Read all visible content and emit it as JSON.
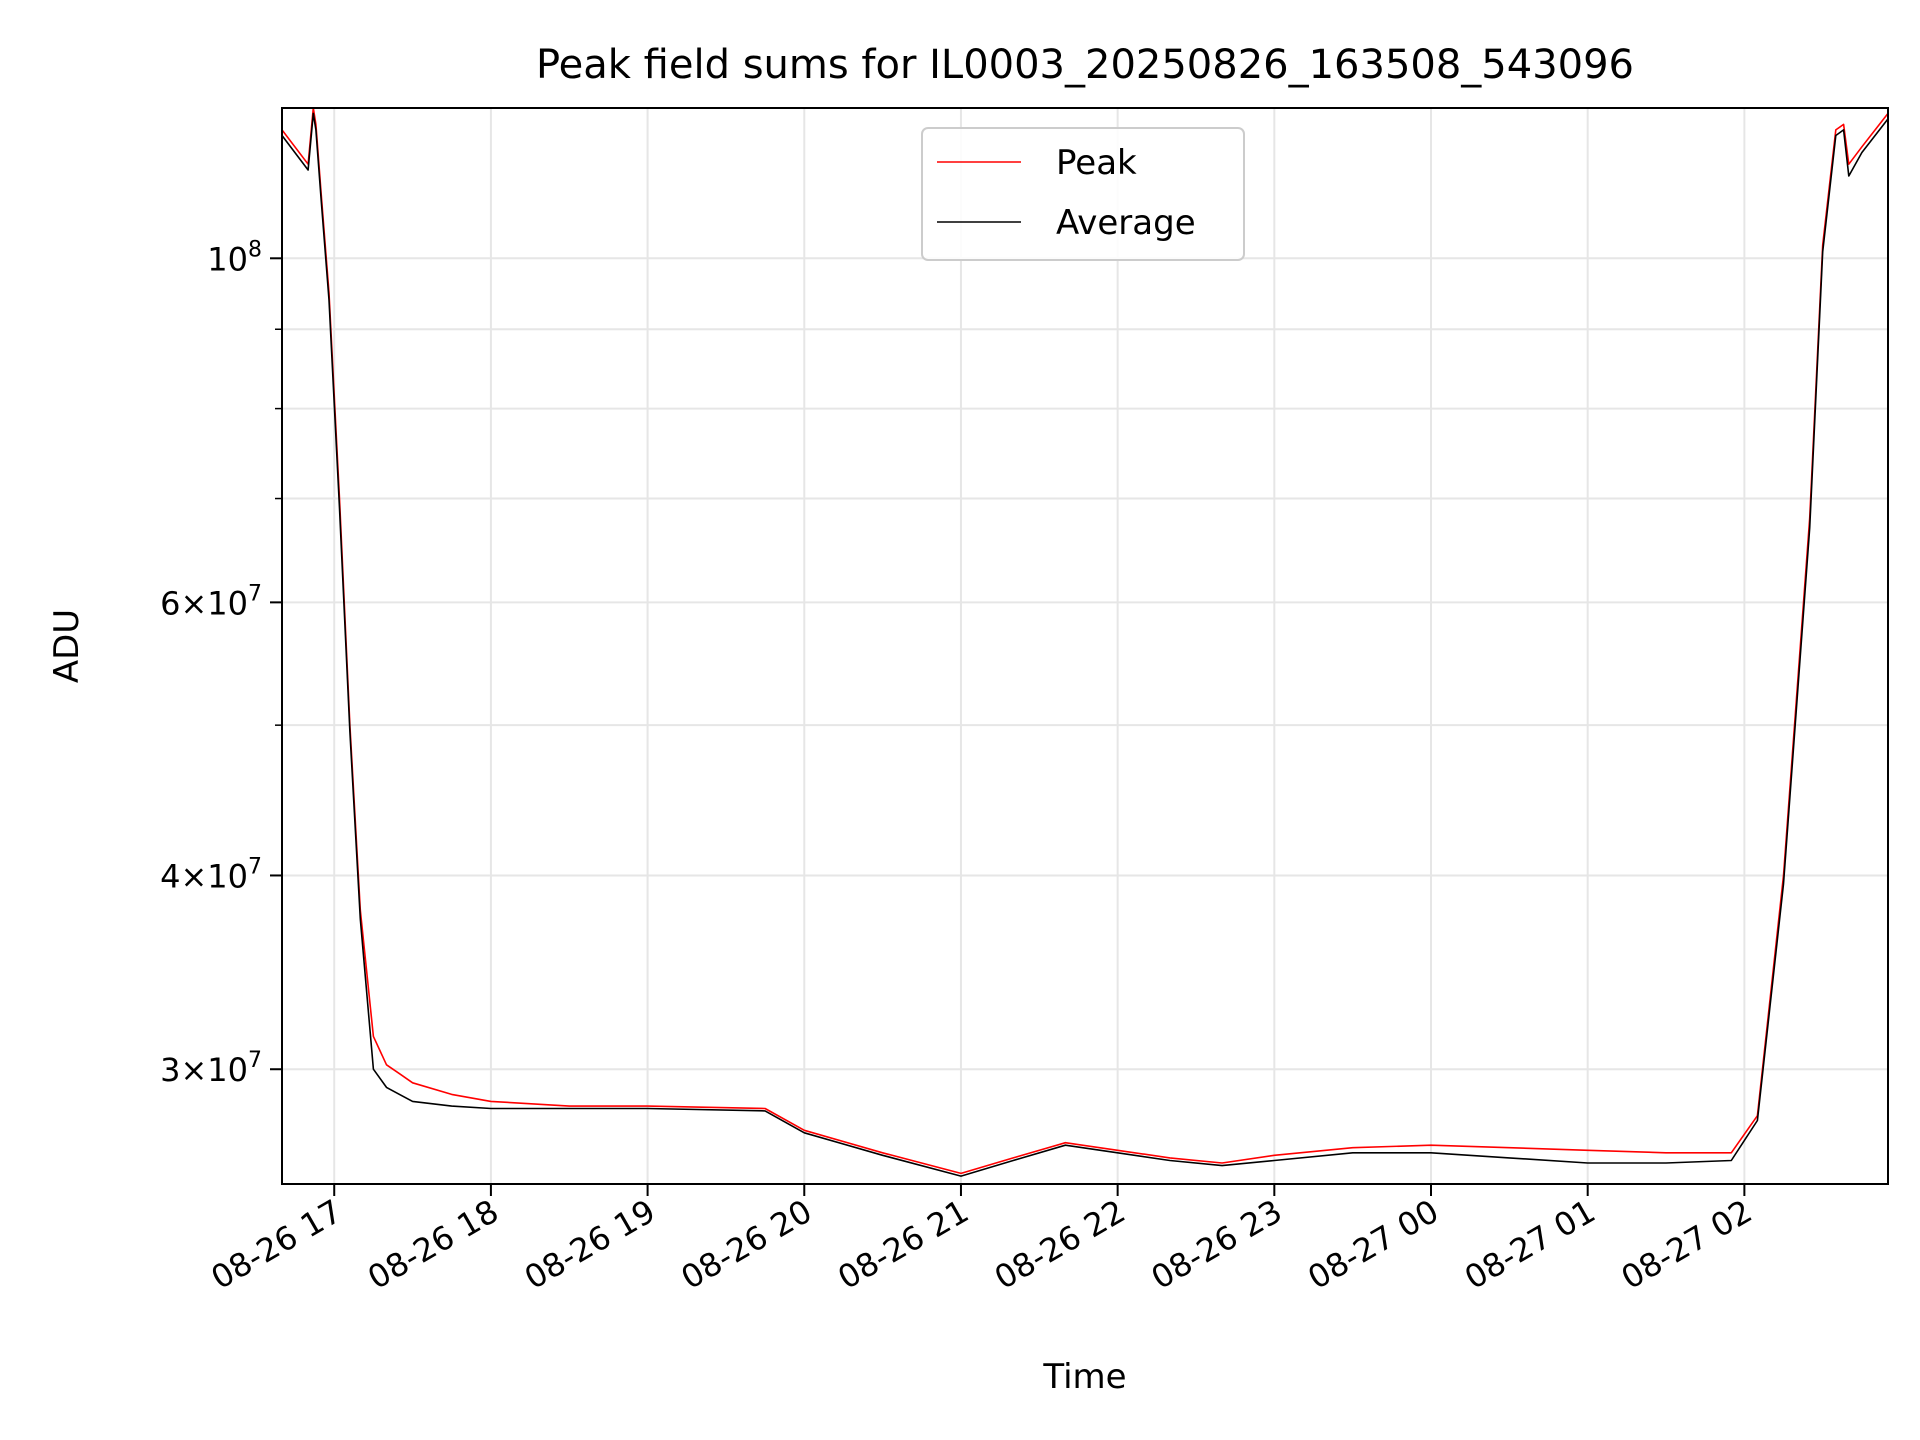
{
  "chart_data": {
    "type": "line",
    "title": "Peak field sums for IL0003_20250826_163508_543096",
    "xlabel": "Time",
    "ylabel": "ADU",
    "yscale": "log",
    "grid": true,
    "legend_position": "top-center",
    "x_range": [
      "2025-08-26 16:40",
      "2025-08-27 02:55"
    ],
    "ylim": [
      25300000,
      125000000
    ],
    "x_ticks": [
      "2025-08-26 17:00",
      "2025-08-26 18:00",
      "2025-08-26 19:00",
      "2025-08-26 20:00",
      "2025-08-26 21:00",
      "2025-08-26 22:00",
      "2025-08-26 23:00",
      "2025-08-27 00:00",
      "2025-08-27 01:00",
      "2025-08-27 02:00"
    ],
    "x_tick_labels": [
      "08-26 17",
      "08-26 18",
      "08-26 19",
      "08-26 20",
      "08-26 21",
      "08-26 22",
      "08-26 23",
      "08-27 00",
      "08-27 01",
      "08-27 02"
    ],
    "y_ticks": [
      {
        "value": 100000000,
        "mantissa": "",
        "exponent": "8"
      },
      {
        "value": 60000000,
        "mantissa": "6",
        "exponent": "7"
      },
      {
        "value": 40000000,
        "mantissa": "4",
        "exponent": "7"
      },
      {
        "value": 30000000,
        "mantissa": "3",
        "exponent": "7"
      }
    ],
    "series": [
      {
        "name": "Peak",
        "color": "#ff0000",
        "x": [
          "2025-08-26 16:40",
          "2025-08-26 16:50",
          "2025-08-26 16:52",
          "2025-08-26 16:53",
          "2025-08-26 16:55",
          "2025-08-26 16:58",
          "2025-08-26 17:02",
          "2025-08-26 17:06",
          "2025-08-26 17:10",
          "2025-08-26 17:15",
          "2025-08-26 17:20",
          "2025-08-26 17:25",
          "2025-08-26 17:30",
          "2025-08-26 17:45",
          "2025-08-26 18:00",
          "2025-08-26 18:30",
          "2025-08-26 19:00",
          "2025-08-26 19:45",
          "2025-08-26 20:00",
          "2025-08-26 20:30",
          "2025-08-26 21:00",
          "2025-08-26 21:20",
          "2025-08-26 21:40",
          "2025-08-26 22:00",
          "2025-08-26 22:20",
          "2025-08-26 22:40",
          "2025-08-26 23:00",
          "2025-08-26 23:30",
          "2025-08-27 00:00",
          "2025-08-27 00:30",
          "2025-08-27 01:00",
          "2025-08-27 01:30",
          "2025-08-27 01:55",
          "2025-08-27 02:05",
          "2025-08-27 02:15",
          "2025-08-27 02:25",
          "2025-08-27 02:30",
          "2025-08-27 02:35",
          "2025-08-27 02:38",
          "2025-08-27 02:40",
          "2025-08-27 02:45",
          "2025-08-27 02:55"
        ],
        "y": [
          121000000,
          115000000,
          125000000,
          122000000,
          110000000,
          95000000,
          70000000,
          50000000,
          38000000,
          31500000,
          30200000,
          29800000,
          29400000,
          28900000,
          28600000,
          28400000,
          28400000,
          28300000,
          27400000,
          26500000,
          25700000,
          26300000,
          26900000,
          26600000,
          26300000,
          26100000,
          26400000,
          26700000,
          26800000,
          26700000,
          26600000,
          26500000,
          26500000,
          28000000,
          40000000,
          68000000,
          102000000,
          121000000,
          122000000,
          115000000,
          118000000,
          124000000
        ]
      },
      {
        "name": "Average",
        "color": "#000000",
        "x": [
          "2025-08-26 16:40",
          "2025-08-26 16:50",
          "2025-08-26 16:52",
          "2025-08-26 16:53",
          "2025-08-26 16:55",
          "2025-08-26 16:58",
          "2025-08-26 17:02",
          "2025-08-26 17:06",
          "2025-08-26 17:10",
          "2025-08-26 17:15",
          "2025-08-26 17:20",
          "2025-08-26 17:25",
          "2025-08-26 17:30",
          "2025-08-26 17:45",
          "2025-08-26 18:00",
          "2025-08-26 18:30",
          "2025-08-26 19:00",
          "2025-08-26 19:45",
          "2025-08-26 20:00",
          "2025-08-26 20:30",
          "2025-08-26 21:00",
          "2025-08-26 21:20",
          "2025-08-26 21:40",
          "2025-08-26 22:00",
          "2025-08-26 22:20",
          "2025-08-26 22:40",
          "2025-08-26 23:00",
          "2025-08-26 23:30",
          "2025-08-27 00:00",
          "2025-08-27 00:30",
          "2025-08-27 01:00",
          "2025-08-27 01:30",
          "2025-08-27 01:55",
          "2025-08-27 02:05",
          "2025-08-27 02:15",
          "2025-08-27 02:25",
          "2025-08-27 02:30",
          "2025-08-27 02:35",
          "2025-08-27 02:38",
          "2025-08-27 02:40",
          "2025-08-27 02:45",
          "2025-08-27 02:55"
        ],
        "y": [
          120000000,
          114000000,
          124000000,
          121000000,
          109000000,
          94000000,
          69000000,
          49500000,
          37500000,
          30000000,
          29200000,
          28900000,
          28600000,
          28400000,
          28300000,
          28300000,
          28300000,
          28200000,
          27300000,
          26400000,
          25600000,
          26200000,
          26800000,
          26500000,
          26200000,
          26000000,
          26200000,
          26500000,
          26500000,
          26300000,
          26100000,
          26100000,
          26200000,
          27800000,
          39500000,
          67000000,
          101000000,
          120000000,
          121000000,
          113000000,
          117000000,
          123000000
        ]
      }
    ]
  }
}
